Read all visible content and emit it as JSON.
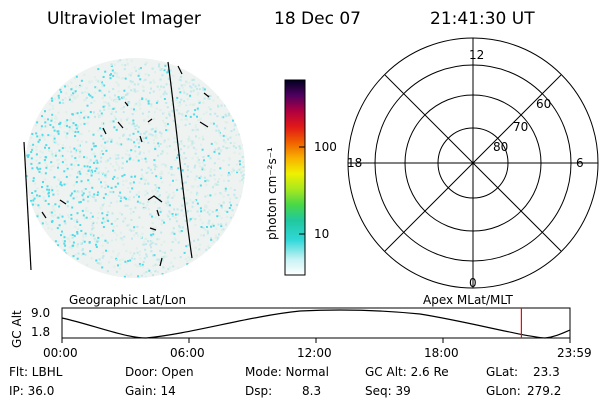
{
  "header": {
    "instrument": "Ultraviolet Imager",
    "date": "18 Dec 07",
    "time": "21:41:30 UT"
  },
  "colorbar": {
    "label": "photon cm⁻²s⁻¹",
    "ticks": [
      "100",
      "10"
    ]
  },
  "polar_plot": {
    "mlt_labels": [
      "12",
      "18",
      "6",
      "0"
    ],
    "lat_labels": [
      "60",
      "70",
      "80"
    ]
  },
  "projection_labels": {
    "left": "Geographic Lat/Lon",
    "right": "Apex MLat/MLT"
  },
  "altitude_panel": {
    "ylabel": "GC Alt",
    "ymax": "9.0",
    "ymin": "1.8",
    "time_ticks": [
      "00:00",
      "06:00",
      "12:00",
      "18:00",
      "23:59"
    ],
    "current_time_hours": 21.69
  },
  "info": {
    "flt": "Flt: LBHL",
    "door": "Door: Open",
    "mode": "Mode: Normal",
    "gcalt": "GC Alt: 2.6 Re",
    "glat_label": "GLat:",
    "glat_value": "23.3",
    "ip": "IP: 36.0",
    "gain": "Gain: 14",
    "dsp_label": "Dsp:",
    "dsp_value": "8.3",
    "seq": "Seq: 39",
    "glon_label": "GLon:",
    "glon_value": "279.2"
  },
  "colors": {
    "cursor": "#ff0000",
    "speckle": "#4fdce8"
  }
}
